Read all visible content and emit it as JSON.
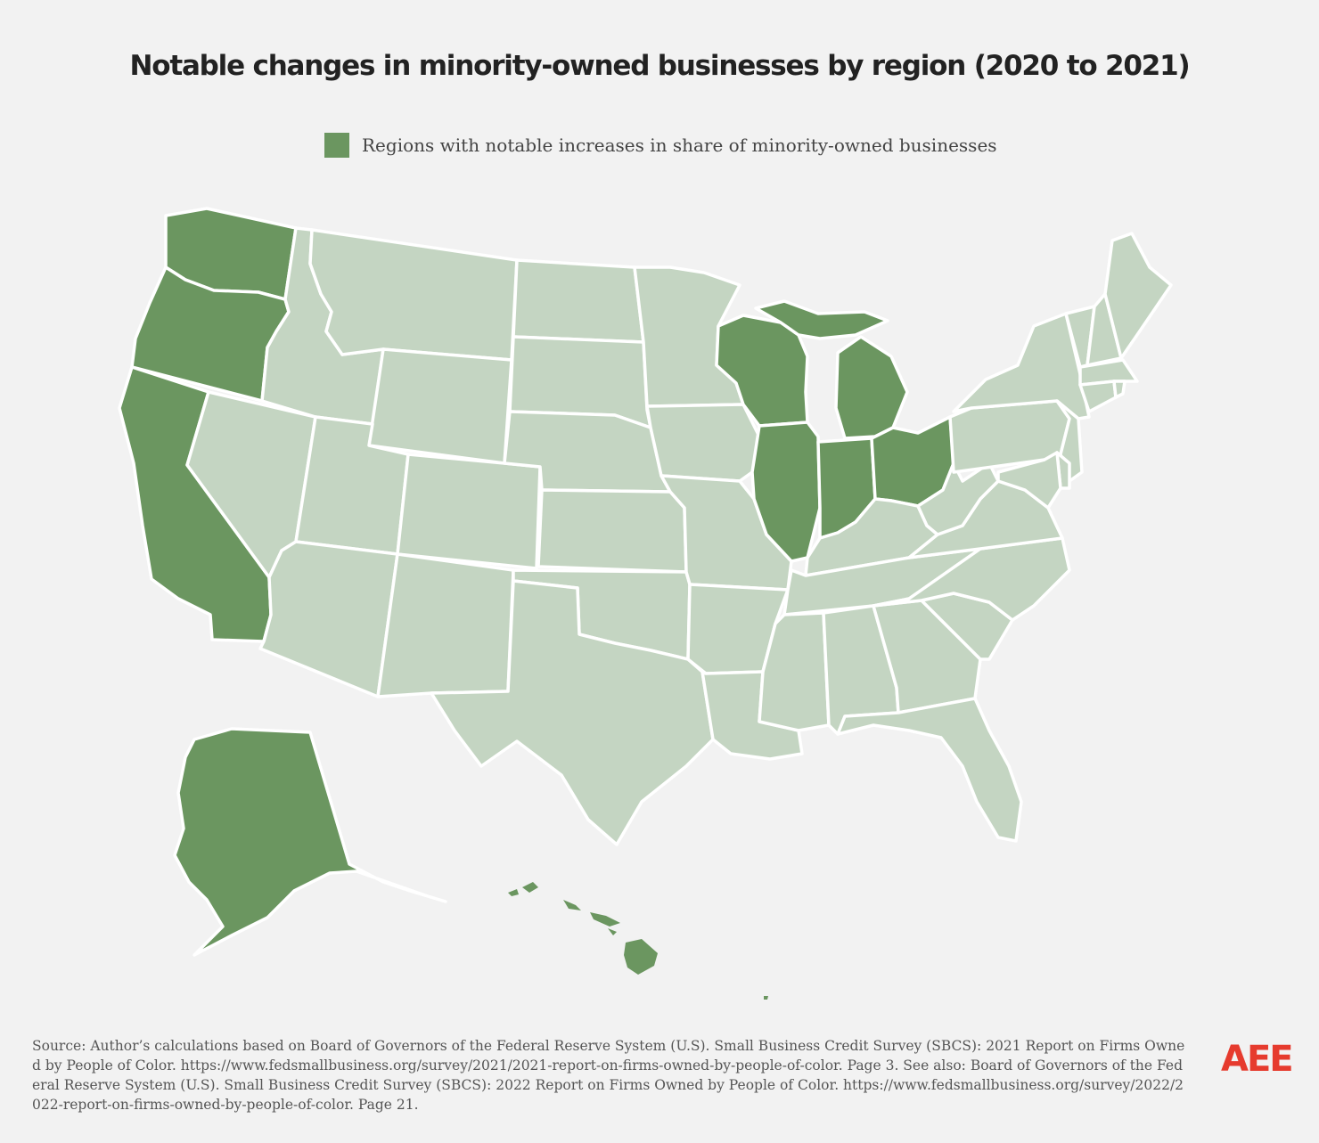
{
  "title": "Notable changes in minority-owned businesses by region (2020 to 2021)",
  "legend": {
    "label": "Regions with notable increases in share of minority-owned businesses"
  },
  "colors": {
    "highlight": "#6b9660",
    "base": "#c4d5c2",
    "background": "#f2f2f2",
    "border": "#ffffff",
    "logo": "#e63b2e"
  },
  "highlighted_states": [
    "WA",
    "OR",
    "CA",
    "AK",
    "HI",
    "WI",
    "MI",
    "IL",
    "IN",
    "OH"
  ],
  "map_regions": [
    {
      "id": "WA",
      "name": "washington"
    },
    {
      "id": "OR",
      "name": "oregon"
    },
    {
      "id": "CA",
      "name": "california"
    },
    {
      "id": "NV",
      "name": "nevada"
    },
    {
      "id": "ID",
      "name": "idaho"
    },
    {
      "id": "MT",
      "name": "montana"
    },
    {
      "id": "WY",
      "name": "wyoming"
    },
    {
      "id": "UT",
      "name": "utah"
    },
    {
      "id": "AZ",
      "name": "arizona"
    },
    {
      "id": "CO",
      "name": "colorado"
    },
    {
      "id": "NM",
      "name": "new-mexico"
    },
    {
      "id": "ND",
      "name": "north-dakota"
    },
    {
      "id": "SD",
      "name": "south-dakota"
    },
    {
      "id": "NE",
      "name": "nebraska"
    },
    {
      "id": "KS",
      "name": "kansas"
    },
    {
      "id": "OK",
      "name": "oklahoma"
    },
    {
      "id": "TX",
      "name": "texas"
    },
    {
      "id": "MN",
      "name": "minnesota"
    },
    {
      "id": "IA",
      "name": "iowa"
    },
    {
      "id": "MO",
      "name": "missouri"
    },
    {
      "id": "AR",
      "name": "arkansas"
    },
    {
      "id": "LA",
      "name": "louisiana"
    },
    {
      "id": "WI",
      "name": "wisconsin"
    },
    {
      "id": "MI",
      "name": "michigan"
    },
    {
      "id": "IL",
      "name": "illinois"
    },
    {
      "id": "IN",
      "name": "indiana"
    },
    {
      "id": "OH",
      "name": "ohio"
    },
    {
      "id": "KY",
      "name": "kentucky"
    },
    {
      "id": "TN",
      "name": "tennessee"
    },
    {
      "id": "MS",
      "name": "mississippi"
    },
    {
      "id": "AL",
      "name": "alabama"
    },
    {
      "id": "GA",
      "name": "georgia"
    },
    {
      "id": "FL",
      "name": "florida"
    },
    {
      "id": "SC",
      "name": "south-carolina"
    },
    {
      "id": "NC",
      "name": "north-carolina"
    },
    {
      "id": "VA",
      "name": "virginia"
    },
    {
      "id": "WV",
      "name": "west-virginia"
    },
    {
      "id": "PA",
      "name": "pennsylvania"
    },
    {
      "id": "NY",
      "name": "new-york"
    },
    {
      "id": "VT",
      "name": "vermont"
    },
    {
      "id": "NH",
      "name": "new-hampshire"
    },
    {
      "id": "ME",
      "name": "maine"
    },
    {
      "id": "MA",
      "name": "massachusetts"
    },
    {
      "id": "CT",
      "name": "connecticut"
    },
    {
      "id": "RI",
      "name": "rhode-island"
    },
    {
      "id": "NJ",
      "name": "new-jersey"
    },
    {
      "id": "DE",
      "name": "delaware"
    },
    {
      "id": "MD",
      "name": "maryland"
    },
    {
      "id": "AK",
      "name": "alaska"
    },
    {
      "id": "HI",
      "name": "hawaii"
    }
  ],
  "source": "Source: Author’s calculations based on Board of Governors of the Federal Reserve System (U.S). Small Business Credit Survey (SBCS): 2021 Report on Firms Owned by People of Color. https://www.fedsmallbusiness.org/survey/2021/2021-report-on-firms-owned-by-people-of-color. Page 3. See also: Board of Governors of the Federal Reserve System (U.S). Small Business Credit Survey (SBCS): 2022 Report on Firms Owned by People of Color. https://www.fedsmallbusiness.org/survey/2022/2022-report-on-firms-owned-by-people-of-color. Page 21.",
  "logo": "AEE"
}
